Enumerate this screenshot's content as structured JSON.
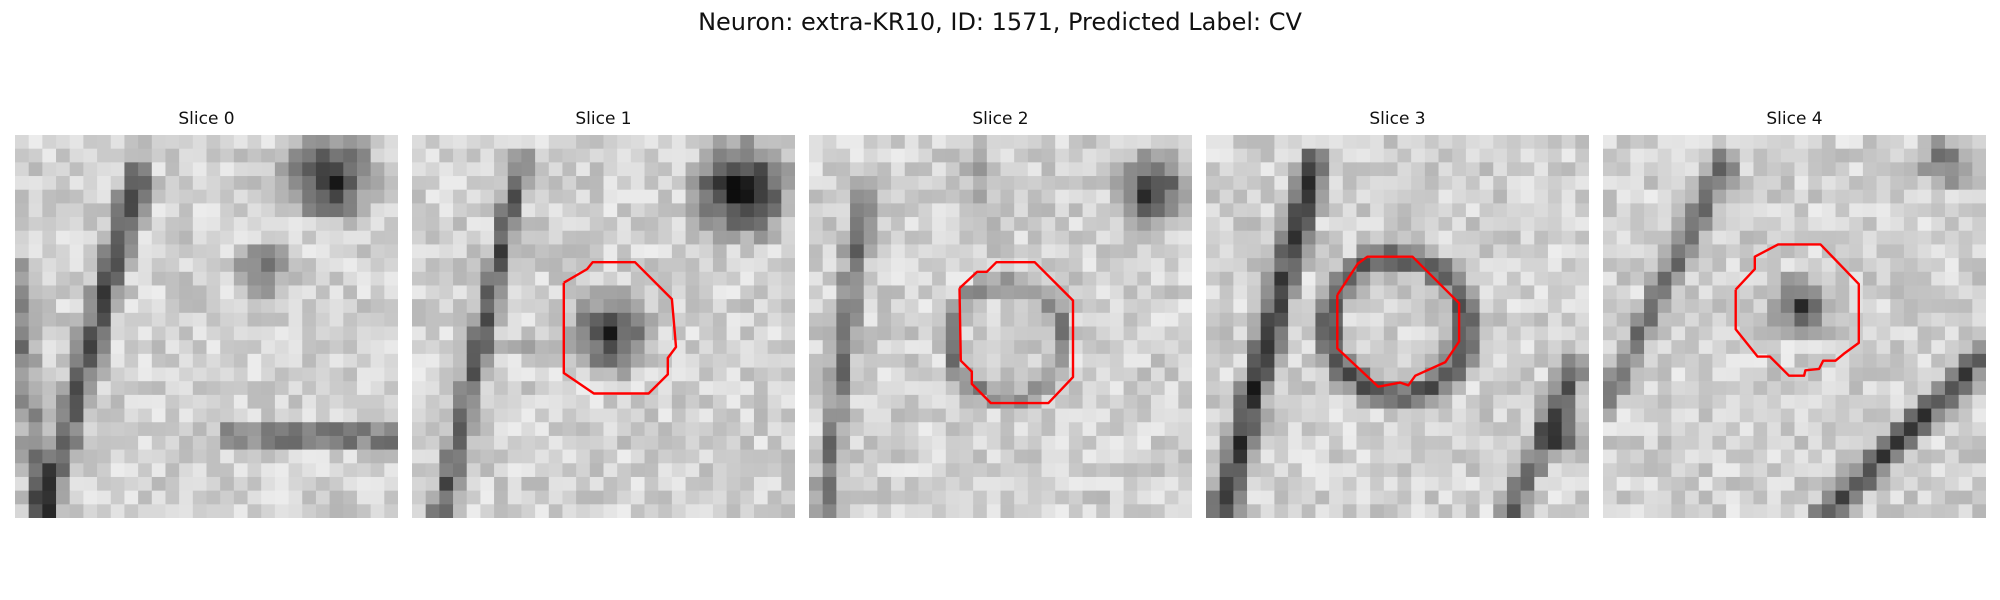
{
  "figure": {
    "title": "Neuron: extra-KR10, ID: 1571, Predicted Label: CV"
  },
  "contour_color": "#ff0000",
  "panels": [
    {
      "title": "Slice 0",
      "has_contour": false
    },
    {
      "title": "Slice 1",
      "has_contour": true
    },
    {
      "title": "Slice 2",
      "has_contour": true
    },
    {
      "title": "Slice 3",
      "has_contour": true
    },
    {
      "title": "Slice 4",
      "has_contour": true
    }
  ]
}
